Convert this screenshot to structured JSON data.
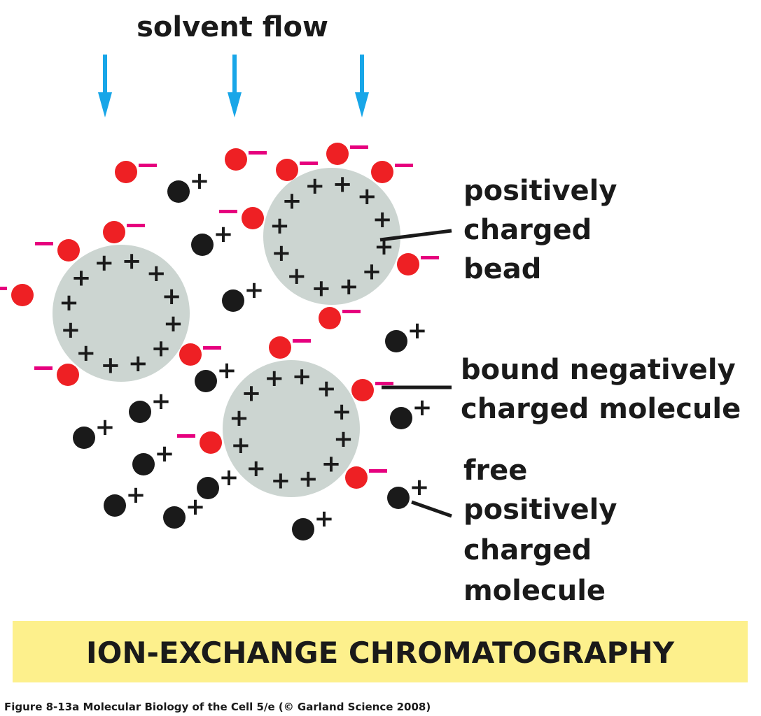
{
  "header": {
    "solvent_flow": "solvent flow"
  },
  "labels": {
    "bead": [
      "positively",
      "charged",
      "bead"
    ],
    "bound": [
      "bound negatively",
      "charged molecule"
    ],
    "free": [
      "free",
      "positively",
      "charged",
      "molecule"
    ]
  },
  "title": "ION-EXCHANGE CHROMATOGRAPHY",
  "caption": "Figure 8-13a  Molecular Biology of the Cell 5/e (© Garland Science 2008)",
  "symbols": {
    "plus": "+",
    "minus": "–"
  },
  "colors": {
    "arrow": "#18a6e8",
    "bead": "#ccd5d1",
    "negative_molecule": "#ee2024",
    "minus_sign": "#e6007e",
    "positive_molecule": "#1a1a1a",
    "title_bar": "#fdf08c"
  }
}
